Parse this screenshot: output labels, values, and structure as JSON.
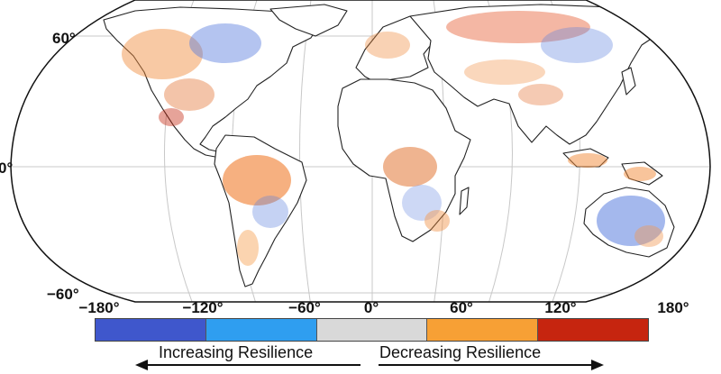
{
  "map": {
    "latitude_labels": [
      "60°",
      "0°",
      "−60°"
    ],
    "scale_ticks": [
      "−180°",
      "−120°",
      "−60°",
      "0°",
      "60°",
      "120°",
      "180°"
    ],
    "color_scale": [
      "#3f57cc",
      "#2f9ef0",
      "#d9d9d9",
      "#f7a035",
      "#c6250f"
    ],
    "legend": {
      "left_label": "Increasing Resilience",
      "right_label": "Decreasing Resilience"
    }
  }
}
